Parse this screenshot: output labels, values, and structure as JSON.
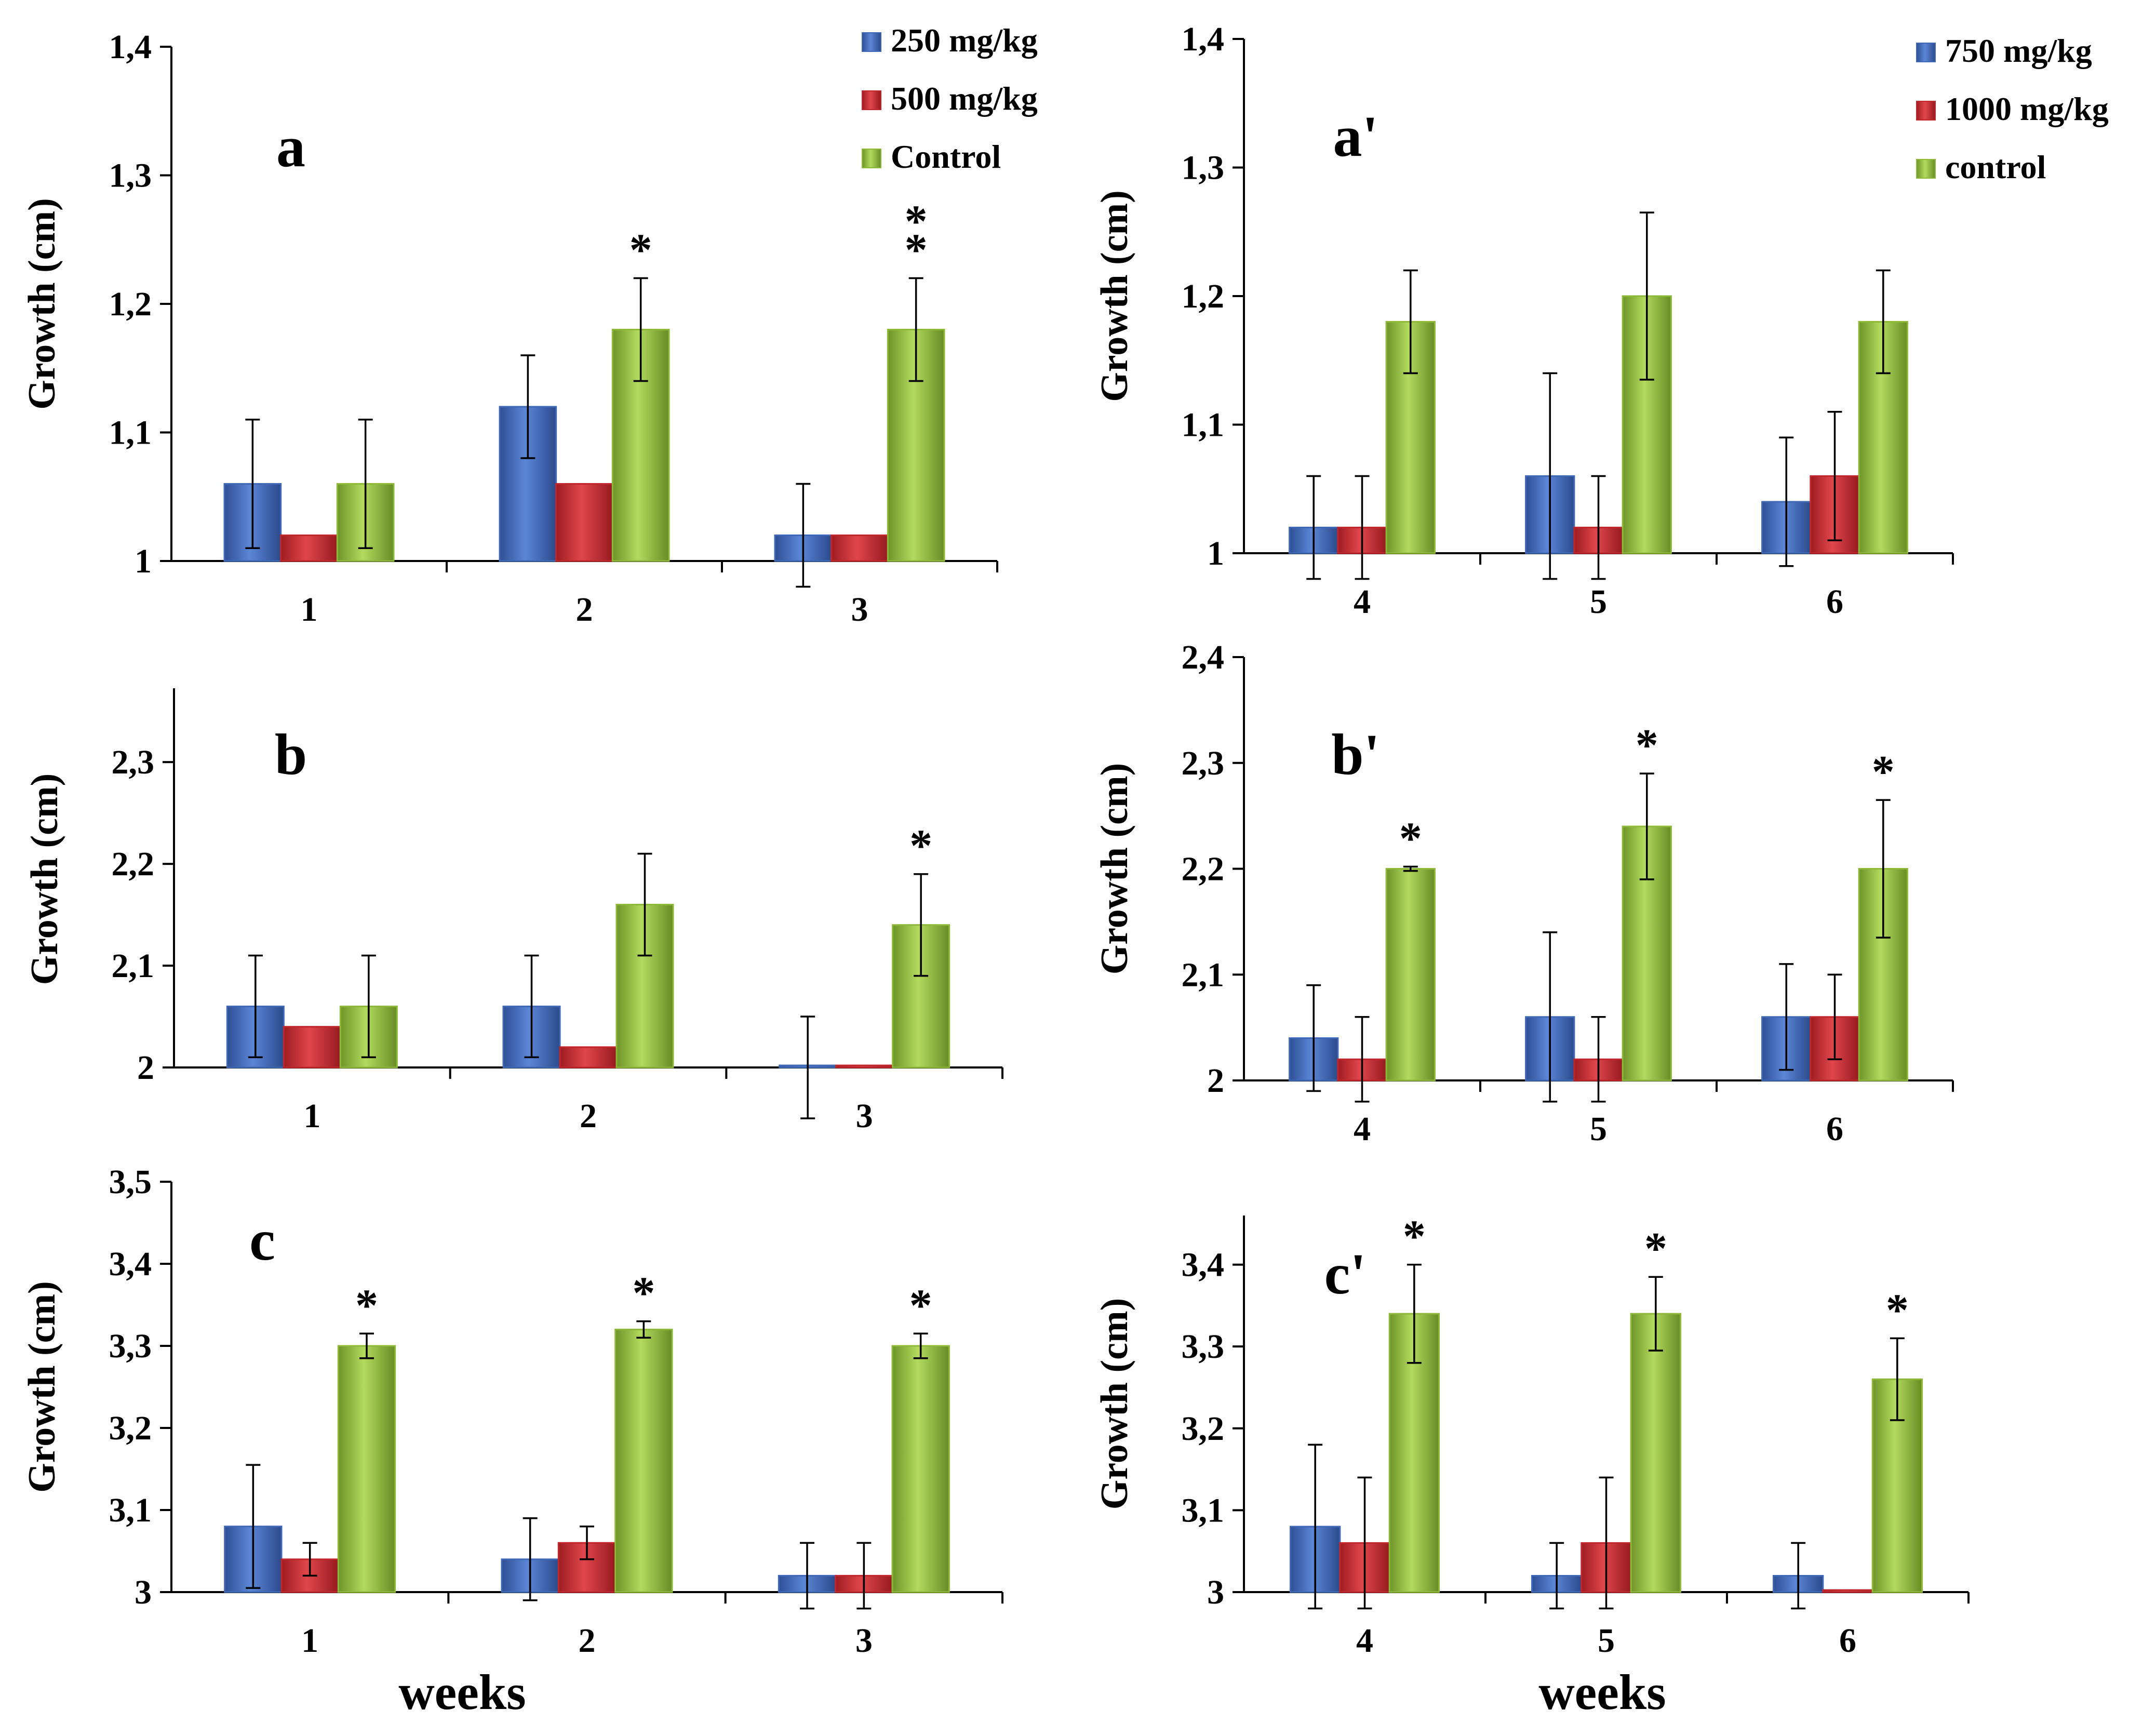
{
  "colors": {
    "blue": "#3F68B5",
    "red": "#C0272D",
    "green": "#8DB83A"
  },
  "chart_data": [
    {
      "id": "a",
      "type": "bar",
      "panel_label": "a",
      "ylabel": "Growth (cm)",
      "xlabel": "",
      "ylim": [
        1,
        1.4
      ],
      "yticks": [
        "1",
        "1,1",
        "1,2",
        "1,3",
        "1,4"
      ],
      "categories": [
        "1",
        "2",
        "3"
      ],
      "legend": [
        "250 mg/kg",
        "500 mg/kg",
        "Control"
      ],
      "series": [
        {
          "name": "250 mg/kg",
          "color": "blue",
          "values": [
            1.06,
            1.12,
            1.02
          ],
          "errors": [
            0.05,
            0.04,
            0.04
          ]
        },
        {
          "name": "500 mg/kg",
          "color": "red",
          "values": [
            1.02,
            1.06,
            1.02
          ],
          "errors": [
            0,
            0,
            0
          ]
        },
        {
          "name": "Control",
          "color": "green",
          "values": [
            1.06,
            1.18,
            1.18
          ],
          "errors": [
            0.05,
            0.04,
            0.04
          ]
        }
      ],
      "annotations": [
        {
          "category": "2",
          "series": "Control",
          "text": "*"
        },
        {
          "category": "3",
          "series": "Control",
          "text": "**"
        }
      ]
    },
    {
      "id": "a_prime",
      "type": "bar",
      "panel_label": "a'",
      "ylabel": "Growth (cm)",
      "xlabel": "",
      "ylim": [
        1,
        1.4
      ],
      "yticks": [
        "1",
        "1,1",
        "1,2",
        "1,3",
        "1,4"
      ],
      "categories": [
        "4",
        "5",
        "6"
      ],
      "legend": [
        "750 mg/kg",
        "1000 mg/kg",
        "control"
      ],
      "series": [
        {
          "name": "750 mg/kg",
          "color": "blue",
          "values": [
            1.02,
            1.06,
            1.04
          ],
          "errors": [
            0.04,
            0.08,
            0.05
          ]
        },
        {
          "name": "1000 mg/kg",
          "color": "red",
          "values": [
            1.02,
            1.02,
            1.06
          ],
          "errors": [
            0.04,
            0.04,
            0.05
          ]
        },
        {
          "name": "control",
          "color": "green",
          "values": [
            1.18,
            1.2,
            1.18
          ],
          "errors": [
            0.04,
            0.065,
            0.04
          ]
        }
      ],
      "annotations": []
    },
    {
      "id": "b",
      "type": "bar",
      "panel_label": "b",
      "ylabel": "Growth (cm)",
      "xlabel": "",
      "ylim": [
        2,
        2.37
      ],
      "yticks": [
        "2",
        "2,1",
        "2,2",
        "2,3"
      ],
      "categories": [
        "1",
        "2",
        "3"
      ],
      "legend": [],
      "series": [
        {
          "name": "250 mg/kg",
          "color": "blue",
          "values": [
            2.06,
            2.06,
            2.0
          ],
          "errors": [
            0.05,
            0.05,
            0.05
          ]
        },
        {
          "name": "500 mg/kg",
          "color": "red",
          "values": [
            2.04,
            2.02,
            2.0
          ],
          "errors": [
            0,
            0,
            0
          ]
        },
        {
          "name": "Control",
          "color": "green",
          "values": [
            2.06,
            2.16,
            2.14
          ],
          "errors": [
            0.05,
            0.05,
            0.05
          ]
        }
      ],
      "annotations": [
        {
          "category": "3",
          "series": "Control",
          "text": "*"
        }
      ]
    },
    {
      "id": "b_prime",
      "type": "bar",
      "panel_label": "b'",
      "ylabel": "Growth (cm)",
      "xlabel": "",
      "ylim": [
        2,
        2.4
      ],
      "yticks": [
        "2",
        "2,1",
        "2,2",
        "2,3",
        "2,4"
      ],
      "categories": [
        "4",
        "5",
        "6"
      ],
      "legend": [],
      "series": [
        {
          "name": "750 mg/kg",
          "color": "blue",
          "values": [
            2.04,
            2.06,
            2.06
          ],
          "errors": [
            0.05,
            0.08,
            0.05
          ]
        },
        {
          "name": "1000 mg/kg",
          "color": "red",
          "values": [
            2.02,
            2.02,
            2.06
          ],
          "errors": [
            0.04,
            0.04,
            0.04
          ]
        },
        {
          "name": "control",
          "color": "green",
          "values": [
            2.2,
            2.24,
            2.2
          ],
          "errors": [
            0.002,
            0.05,
            0.065
          ]
        }
      ],
      "annotations": [
        {
          "category": "4",
          "series": "control",
          "text": "*"
        },
        {
          "category": "5",
          "series": "control",
          "text": "*"
        },
        {
          "category": "6",
          "series": "control",
          "text": "*"
        }
      ]
    },
    {
      "id": "c",
      "type": "bar",
      "panel_label": "c",
      "ylabel": "Growth (cm)",
      "xlabel": "weeks",
      "ylim": [
        3,
        3.5
      ],
      "yticks": [
        "3",
        "3,1",
        "3,2",
        "3,3",
        "3,4",
        "3,5"
      ],
      "categories": [
        "1",
        "2",
        "3"
      ],
      "legend": [],
      "series": [
        {
          "name": "250 mg/kg",
          "color": "blue",
          "values": [
            3.08,
            3.04,
            3.02
          ],
          "errors": [
            0.075,
            0.05,
            0.04
          ]
        },
        {
          "name": "500 mg/kg",
          "color": "red",
          "values": [
            3.04,
            3.06,
            3.02
          ],
          "errors": [
            0.02,
            0.02,
            0.04
          ]
        },
        {
          "name": "Control",
          "color": "green",
          "values": [
            3.3,
            3.32,
            3.3
          ],
          "errors": [
            0.015,
            0.01,
            0.015
          ]
        }
      ],
      "annotations": [
        {
          "category": "1",
          "series": "Control",
          "text": "*"
        },
        {
          "category": "2",
          "series": "Control",
          "text": "*"
        },
        {
          "category": "3",
          "series": "Control",
          "text": "*"
        }
      ]
    },
    {
      "id": "c_prime",
      "type": "bar",
      "panel_label": "c'",
      "ylabel": "Growth (cm)",
      "xlabel": "weeks",
      "ylim": [
        3,
        3.46
      ],
      "yticks": [
        "3",
        "3,1",
        "3,2",
        "3,3",
        "3,4"
      ],
      "categories": [
        "4",
        "5",
        "6"
      ],
      "legend": [],
      "series": [
        {
          "name": "750 mg/kg",
          "color": "blue",
          "values": [
            3.08,
            3.02,
            3.02
          ],
          "errors": [
            0.1,
            0.04,
            0.04
          ]
        },
        {
          "name": "1000 mg/kg",
          "color": "red",
          "values": [
            3.06,
            3.06,
            3.0
          ],
          "errors": [
            0.08,
            0.08,
            0
          ]
        },
        {
          "name": "control",
          "color": "green",
          "values": [
            3.34,
            3.34,
            3.26
          ],
          "errors": [
            0.06,
            0.045,
            0.05
          ]
        }
      ],
      "annotations": [
        {
          "category": "4",
          "series": "control",
          "text": "*"
        },
        {
          "category": "5",
          "series": "control",
          "text": "*"
        },
        {
          "category": "6",
          "series": "control",
          "text": "*"
        }
      ]
    }
  ]
}
